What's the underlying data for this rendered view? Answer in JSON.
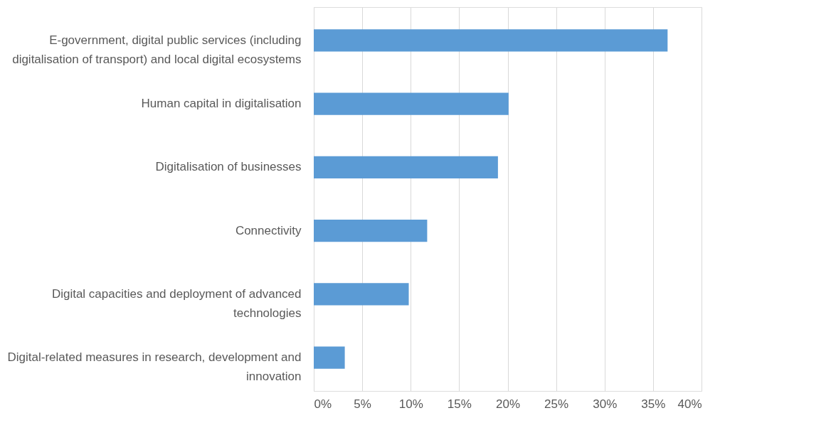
{
  "chart_data": {
    "type": "bar",
    "orientation": "horizontal",
    "categories": [
      "E-government, digital public services (including digitalisation of transport) and local digital ecosystems",
      "Human capital in digitalisation",
      "Digitalisation of businesses",
      "Connectivity",
      "Digital capacities and deployment of advanced technologies",
      "Digital-related measures in research, development and innovation"
    ],
    "values": [
      36.5,
      20.1,
      19.0,
      11.7,
      9.8,
      3.2
    ],
    "color": "#5b9bd5",
    "xlim": [
      0,
      40
    ],
    "xticks": [
      {
        "value": 0,
        "label": "0%"
      },
      {
        "value": 5,
        "label": "5%"
      },
      {
        "value": 10,
        "label": "10%"
      },
      {
        "value": 15,
        "label": "15%"
      },
      {
        "value": 20,
        "label": "20%"
      },
      {
        "value": 25,
        "label": "25%"
      },
      {
        "value": 30,
        "label": "30%"
      },
      {
        "value": 35,
        "label": "35%"
      },
      {
        "value": 40,
        "label": "40%"
      }
    ],
    "grid": "x"
  }
}
